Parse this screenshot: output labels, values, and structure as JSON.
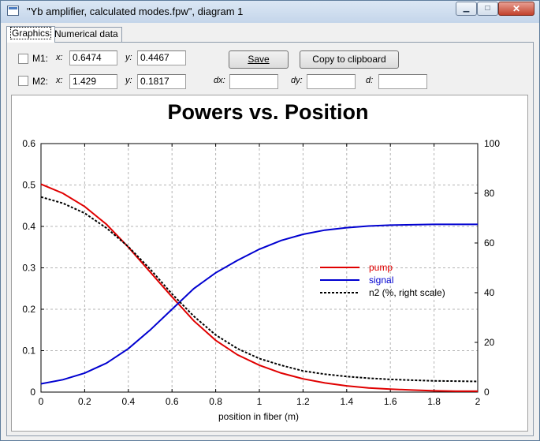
{
  "window": {
    "title": "\"Yb amplifier, calculated modes.fpw\", diagram 1",
    "min_glyph": "▁",
    "max_glyph": "□",
    "close_glyph": "✕"
  },
  "tabs": [
    {
      "label": "Graphics",
      "active": true
    },
    {
      "label": "Numerical data",
      "active": false
    }
  ],
  "markers": {
    "m1": {
      "label": "M1:",
      "x_label": "x:",
      "x": "0.6474",
      "y_label": "y:",
      "y": "0.4467",
      "checked": false
    },
    "m2": {
      "label": "M2:",
      "x_label": "x:",
      "x": "1.429",
      "y_label": "y:",
      "y": "0.1817",
      "checked": false
    }
  },
  "deltas": {
    "dx_label": "dx:",
    "dx": "",
    "dy_label": "dy:",
    "dy": "",
    "d_label": "d:",
    "d": ""
  },
  "buttons": {
    "save": "Save",
    "copy": "Copy to clipboard"
  },
  "chart_data": {
    "type": "line",
    "title": "Powers vs. Position",
    "xlabel": "position in fiber (m)",
    "ylabel": "",
    "y2label": "",
    "xlim": [
      0,
      2
    ],
    "ylim": [
      0,
      0.6
    ],
    "y2lim": [
      0,
      100
    ],
    "xticks": [
      "0",
      "0.2",
      "0.4",
      "0.6",
      "0.8",
      "1",
      "1.2",
      "1.4",
      "1.6",
      "1.8",
      "2"
    ],
    "yticks": [
      "0",
      "0.1",
      "0.2",
      "0.3",
      "0.4",
      "0.5",
      "0.6"
    ],
    "y2ticks": [
      "0",
      "20",
      "40",
      "60",
      "80",
      "100"
    ],
    "grid": true,
    "legend_position": "center-right",
    "series": [
      {
        "name": "pump",
        "color": "#e00000",
        "style": "solid",
        "axis": "left",
        "x": [
          0,
          0.1,
          0.2,
          0.3,
          0.4,
          0.5,
          0.6,
          0.7,
          0.8,
          0.9,
          1.0,
          1.1,
          1.2,
          1.3,
          1.4,
          1.5,
          1.6,
          1.7,
          1.8,
          1.9,
          2.0
        ],
        "y": [
          0.502,
          0.48,
          0.448,
          0.405,
          0.35,
          0.29,
          0.23,
          0.172,
          0.125,
          0.09,
          0.065,
          0.046,
          0.032,
          0.022,
          0.015,
          0.01,
          0.007,
          0.005,
          0.003,
          0.002,
          0.002
        ]
      },
      {
        "name": "signal",
        "color": "#0000d0",
        "style": "solid",
        "axis": "left",
        "x": [
          0,
          0.1,
          0.2,
          0.3,
          0.4,
          0.5,
          0.6,
          0.7,
          0.8,
          0.9,
          1.0,
          1.1,
          1.2,
          1.3,
          1.4,
          1.5,
          1.6,
          1.7,
          1.8,
          1.9,
          2.0
        ],
        "y": [
          0.02,
          0.03,
          0.046,
          0.07,
          0.105,
          0.15,
          0.2,
          0.25,
          0.288,
          0.318,
          0.345,
          0.366,
          0.381,
          0.391,
          0.397,
          0.401,
          0.403,
          0.404,
          0.405,
          0.405,
          0.405
        ]
      },
      {
        "name": "n2 (%, right scale)",
        "color": "#000000",
        "style": "dashed",
        "axis": "right",
        "x": [
          0,
          0.1,
          0.2,
          0.3,
          0.4,
          0.5,
          0.6,
          0.7,
          0.8,
          0.9,
          1.0,
          1.1,
          1.2,
          1.3,
          1.4,
          1.5,
          1.6,
          1.7,
          1.8,
          1.9,
          2.0
        ],
        "y": [
          78.5,
          76,
          72,
          66,
          58.5,
          49.5,
          39.5,
          30.5,
          23,
          17.5,
          13.5,
          10.8,
          8.5,
          7.2,
          6.3,
          5.6,
          5.1,
          4.8,
          4.5,
          4.4,
          4.3
        ]
      }
    ]
  }
}
